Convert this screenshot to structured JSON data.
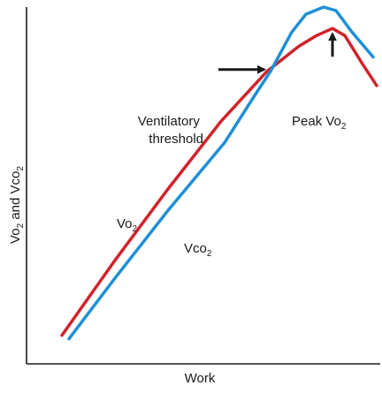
{
  "chart_data": {
    "type": "line",
    "title": "",
    "xlabel": "Work",
    "ylabel": {
      "main": "Vo",
      "sub1": "2",
      "mid": " and Vco",
      "sub2": "2"
    },
    "xlim": [
      0,
      10
    ],
    "ylim": [
      0,
      10
    ],
    "grid": false,
    "legend": "none",
    "series": [
      {
        "name": {
          "main": "Vo",
          "sub": "2"
        },
        "color": "#d0232a",
        "points": [
          [
            1.0,
            0.8
          ],
          [
            2.5,
            2.9
          ],
          [
            4.0,
            4.9
          ],
          [
            5.5,
            6.8
          ],
          [
            6.8,
            8.2
          ],
          [
            7.7,
            8.9
          ],
          [
            8.2,
            9.2
          ],
          [
            8.65,
            9.4
          ],
          [
            9.0,
            9.2
          ],
          [
            9.5,
            8.4
          ],
          [
            9.9,
            7.8
          ]
        ]
      },
      {
        "name": {
          "main": "Vco",
          "sub": "2"
        },
        "color": "#1f8fd6",
        "points": [
          [
            1.2,
            0.7
          ],
          [
            2.5,
            2.4
          ],
          [
            4.0,
            4.3
          ],
          [
            5.6,
            6.2
          ],
          [
            6.5,
            7.6
          ],
          [
            6.9,
            8.2
          ],
          [
            7.5,
            9.3
          ],
          [
            7.9,
            9.8
          ],
          [
            8.4,
            10.0
          ],
          [
            8.75,
            9.9
          ],
          [
            9.2,
            9.3
          ],
          [
            9.8,
            8.6
          ]
        ]
      }
    ],
    "annotations": {
      "ventilatory_threshold": {
        "line1": "Ventilatory",
        "line2": "threshold",
        "point": [
          6.8,
          8.2
        ]
      },
      "peak_vo2": {
        "main": "Peak Vo",
        "sub": "2",
        "point": [
          8.65,
          9.4
        ]
      }
    }
  }
}
